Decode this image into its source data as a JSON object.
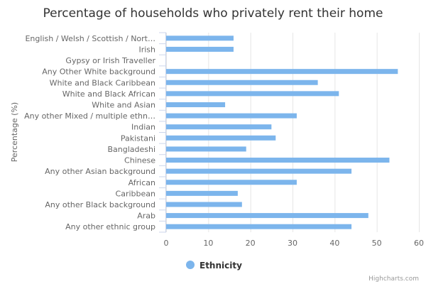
{
  "chart_data": {
    "type": "bar",
    "orientation": "horizontal",
    "title": "Percentage of households who privately rent their home",
    "ylabel": "Percentage (%)",
    "xlim": [
      0,
      60
    ],
    "xticks": [
      0,
      10,
      20,
      30,
      40,
      50,
      60
    ],
    "grid": true,
    "legend_position": "bottom",
    "categories": [
      "English / Welsh / Scottish / Nort…",
      "Irish",
      "Gypsy or Irish Traveller",
      "Any Other White background",
      "White and Black Caribbean",
      "White and Black African",
      "White and Asian",
      "Any other Mixed / multiple ethn…",
      "Indian",
      "Pakistani",
      "Bangladeshi",
      "Chinese",
      "Any other Asian background",
      "African",
      "Caribbean",
      "Any other Black background",
      "Arab",
      "Any other ethnic group"
    ],
    "series": [
      {
        "name": "Ethnicity",
        "color": "#7cb5ec",
        "values": [
          16,
          16,
          null,
          55,
          36,
          41,
          14,
          31,
          25,
          26,
          19,
          53,
          44,
          31,
          17,
          18,
          48,
          44
        ]
      }
    ]
  },
  "credits": "Highcharts.com"
}
